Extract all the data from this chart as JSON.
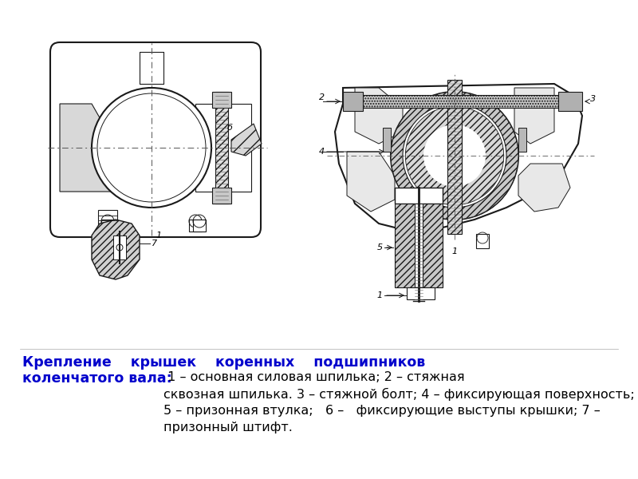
{
  "title_color": "#0000CC",
  "body_color": "#000000",
  "bg_color": "#ffffff",
  "fig_width": 8.0,
  "fig_height": 6.0,
  "dpi": 100,
  "line_color": "#1a1a1a",
  "hatch_color": "#333333",
  "caption_line1_bold": "Крепление    крышек    коренных    подшипников",
  "caption_line2_bold": "коленчатого вала:",
  "caption_body": " 1 – основная силовая шпилька; 2 – стяжная\nсквозная шпилька. 3 – стяжной болт; 4 – фиксирующая поверхность;\n5 – призонная втулка;   6 –   фиксирующие выступы крышки; 7 –\nпризонный штифт."
}
